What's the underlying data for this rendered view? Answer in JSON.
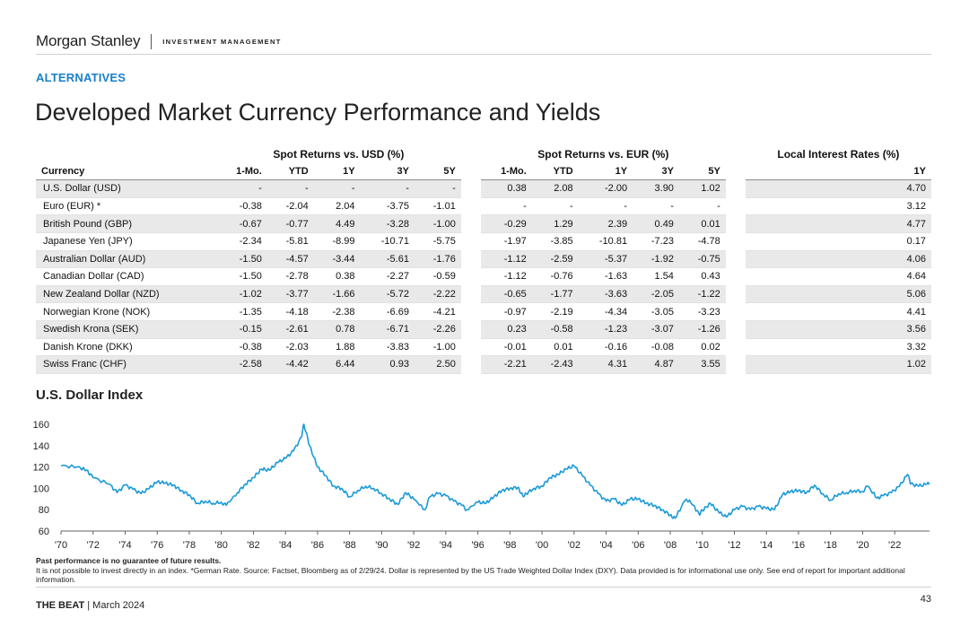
{
  "header": {
    "brand": "Morgan Stanley",
    "division": "INVESTMENT MANAGEMENT"
  },
  "section_label": "ALTERNATIVES",
  "page_title": "Developed Market Currency Performance and Yields",
  "table": {
    "group_headers": [
      "Spot Returns vs. USD (%)",
      "Spot Returns vs. EUR (%)",
      "Local Interest Rates (%)"
    ],
    "column_headers": [
      "Currency",
      "1-Mo.",
      "YTD",
      "1Y",
      "3Y",
      "5Y",
      "1-Mo.",
      "YTD",
      "1Y",
      "3Y",
      "5Y",
      "1Y"
    ],
    "rows": [
      {
        "currency": "U.S. Dollar (USD)",
        "usd": [
          "-",
          "-",
          "-",
          "-",
          "-"
        ],
        "eur": [
          "0.38",
          "2.08",
          "-2.00",
          "3.90",
          "1.02"
        ],
        "rate": "4.70"
      },
      {
        "currency": "Euro (EUR) *",
        "usd": [
          "-0.38",
          "-2.04",
          "2.04",
          "-3.75",
          "-1.01"
        ],
        "eur": [
          "-",
          "-",
          "-",
          "-",
          "-"
        ],
        "rate": "3.12"
      },
      {
        "currency": "British Pound (GBP)",
        "usd": [
          "-0.67",
          "-0.77",
          "4.49",
          "-3.28",
          "-1.00"
        ],
        "eur": [
          "-0.29",
          "1.29",
          "2.39",
          "0.49",
          "0.01"
        ],
        "rate": "4.77"
      },
      {
        "currency": "Japanese Yen (JPY)",
        "usd": [
          "-2.34",
          "-5.81",
          "-8.99",
          "-10.71",
          "-5.75"
        ],
        "eur": [
          "-1.97",
          "-3.85",
          "-10.81",
          "-7.23",
          "-4.78"
        ],
        "rate": "0.17"
      },
      {
        "currency": "Australian Dollar (AUD)",
        "usd": [
          "-1.50",
          "-4.57",
          "-3.44",
          "-5.61",
          "-1.76"
        ],
        "eur": [
          "-1.12",
          "-2.59",
          "-5.37",
          "-1.92",
          "-0.75"
        ],
        "rate": "4.06"
      },
      {
        "currency": "Canadian Dollar (CAD)",
        "usd": [
          "-1.50",
          "-2.78",
          "0.38",
          "-2.27",
          "-0.59"
        ],
        "eur": [
          "-1.12",
          "-0.76",
          "-1.63",
          "1.54",
          "0.43"
        ],
        "rate": "4.64"
      },
      {
        "currency": "New Zealand Dollar (NZD)",
        "usd": [
          "-1.02",
          "-3.77",
          "-1.66",
          "-5.72",
          "-2.22"
        ],
        "eur": [
          "-0.65",
          "-1.77",
          "-3.63",
          "-2.05",
          "-1.22"
        ],
        "rate": "5.06"
      },
      {
        "currency": "Norwegian Krone (NOK)",
        "usd": [
          "-1.35",
          "-4.18",
          "-2.38",
          "-6.69",
          "-4.21"
        ],
        "eur": [
          "-0.97",
          "-2.19",
          "-4.34",
          "-3.05",
          "-3.23"
        ],
        "rate": "4.41"
      },
      {
        "currency": "Swedish Krona (SEK)",
        "usd": [
          "-0.15",
          "-2.61",
          "0.78",
          "-6.71",
          "-2.26"
        ],
        "eur": [
          "0.23",
          "-0.58",
          "-1.23",
          "-3.07",
          "-1.26"
        ],
        "rate": "3.56"
      },
      {
        "currency": "Danish Krone (DKK)",
        "usd": [
          "-0.38",
          "-2.03",
          "1.88",
          "-3.83",
          "-1.00"
        ],
        "eur": [
          "-0.01",
          "0.01",
          "-0.16",
          "-0.08",
          "0.02"
        ],
        "rate": "3.32"
      },
      {
        "currency": "Swiss Franc (CHF)",
        "usd": [
          "-2.58",
          "-4.42",
          "6.44",
          "0.93",
          "2.50"
        ],
        "eur": [
          "-2.21",
          "-2.43",
          "4.31",
          "4.87",
          "3.55"
        ],
        "rate": "1.02"
      }
    ]
  },
  "chart_title": "U.S. Dollar Index",
  "chart_data": {
    "type": "line",
    "title": "U.S. Dollar Index",
    "xlabel": "",
    "ylabel": "",
    "xlim": [
      1970,
      2024.17
    ],
    "ylim": [
      60,
      160
    ],
    "y_ticks": [
      60,
      80,
      100,
      120,
      140,
      160
    ],
    "x_ticks": [
      "'70",
      "'72",
      "'74",
      "'76",
      "'78",
      "'80",
      "'82",
      "'84",
      "'86",
      "'88",
      "'90",
      "'92",
      "'94",
      "'96",
      "'98",
      "'00",
      "'02",
      "'04",
      "'06",
      "'08",
      "'10",
      "'12",
      "'14",
      "'16",
      "'18",
      "'20",
      "'22"
    ],
    "line_color": "#1a9ad6",
    "grid": false,
    "series": [
      {
        "values": [
          [
            1970,
            121
          ],
          [
            1971,
            120
          ],
          [
            1971.6,
            117
          ],
          [
            1972,
            110
          ],
          [
            1973,
            104
          ],
          [
            1973.5,
            96
          ],
          [
            1974,
            103
          ],
          [
            1974.5,
            99
          ],
          [
            1975,
            95
          ],
          [
            1975.5,
            100
          ],
          [
            1976,
            106
          ],
          [
            1976.5,
            105
          ],
          [
            1977,
            103
          ],
          [
            1977.5,
            98
          ],
          [
            1978,
            94
          ],
          [
            1978.5,
            86
          ],
          [
            1979,
            88
          ],
          [
            1979.5,
            86
          ],
          [
            1980,
            87
          ],
          [
            1980.3,
            84
          ],
          [
            1981,
            96
          ],
          [
            1981.5,
            104
          ],
          [
            1982,
            110
          ],
          [
            1982.5,
            118
          ],
          [
            1983,
            117
          ],
          [
            1983.5,
            124
          ],
          [
            1984,
            128
          ],
          [
            1984.5,
            135
          ],
          [
            1985,
            148
          ],
          [
            1985.15,
            160
          ],
          [
            1985.5,
            140
          ],
          [
            1986,
            120
          ],
          [
            1986.5,
            112
          ],
          [
            1987,
            102
          ],
          [
            1987.5,
            100
          ],
          [
            1988,
            92
          ],
          [
            1988.5,
            98
          ],
          [
            1989,
            102
          ],
          [
            1989.5,
            100
          ],
          [
            1990,
            95
          ],
          [
            1990.5,
            90
          ],
          [
            1991,
            85
          ],
          [
            1991.5,
            96
          ],
          [
            1992,
            90
          ],
          [
            1992.7,
            80
          ],
          [
            1993,
            92
          ],
          [
            1993.5,
            95
          ],
          [
            1994,
            93
          ],
          [
            1994.5,
            88
          ],
          [
            1995,
            84
          ],
          [
            1995.3,
            80
          ],
          [
            1996,
            87
          ],
          [
            1996.5,
            86
          ],
          [
            1997,
            92
          ],
          [
            1997.5,
            98
          ],
          [
            1998,
            100
          ],
          [
            1998.5,
            101
          ],
          [
            1998.8,
            93
          ],
          [
            1999,
            95
          ],
          [
            1999.5,
            100
          ],
          [
            2000,
            102
          ],
          [
            2000.5,
            110
          ],
          [
            2001,
            113
          ],
          [
            2001.5,
            118
          ],
          [
            2002,
            121
          ],
          [
            2002.5,
            112
          ],
          [
            2003,
            103
          ],
          [
            2003.5,
            95
          ],
          [
            2004,
            88
          ],
          [
            2004.5,
            90
          ],
          [
            2005,
            84
          ],
          [
            2005.5,
            90
          ],
          [
            2006,
            90
          ],
          [
            2006.5,
            86
          ],
          [
            2007,
            84
          ],
          [
            2007.5,
            80
          ],
          [
            2008,
            75
          ],
          [
            2008.3,
            72
          ],
          [
            2008.9,
            88
          ],
          [
            2009.2,
            89
          ],
          [
            2009.8,
            76
          ],
          [
            2010,
            79
          ],
          [
            2010.5,
            86
          ],
          [
            2011,
            78
          ],
          [
            2011.5,
            73
          ],
          [
            2012,
            80
          ],
          [
            2012.5,
            83
          ],
          [
            2013,
            80
          ],
          [
            2013.5,
            83
          ],
          [
            2014,
            81
          ],
          [
            2014.5,
            80
          ],
          [
            2015,
            94
          ],
          [
            2015.5,
            97
          ],
          [
            2016,
            98
          ],
          [
            2016.5,
            96
          ],
          [
            2017,
            103
          ],
          [
            2017.5,
            95
          ],
          [
            2018,
            89
          ],
          [
            2018.5,
            95
          ],
          [
            2019,
            96
          ],
          [
            2019.5,
            98
          ],
          [
            2020,
            97
          ],
          [
            2020.3,
            102
          ],
          [
            2020.9,
            91
          ],
          [
            2021.3,
            93
          ],
          [
            2021.8,
            96
          ],
          [
            2022.3,
            102
          ],
          [
            2022.8,
            113
          ],
          [
            2023,
            104
          ],
          [
            2023.5,
            102
          ],
          [
            2024,
            104
          ],
          [
            2024.17,
            104
          ]
        ]
      }
    ]
  },
  "footnote": {
    "bold_line": "Past performance is no guarantee of future results.",
    "text": "It is not possible to invest directly in an index. *German Rate. Source: Factset, Bloomberg as of 2/29/24. Dollar is represented by the US Trade Weighted Dollar Index (DXY). Data provided is for informational use only. See end of report for important additional information."
  },
  "footer": {
    "publication": "THE BEAT",
    "separator": " | ",
    "date": "March 2024",
    "page_number": "43"
  }
}
